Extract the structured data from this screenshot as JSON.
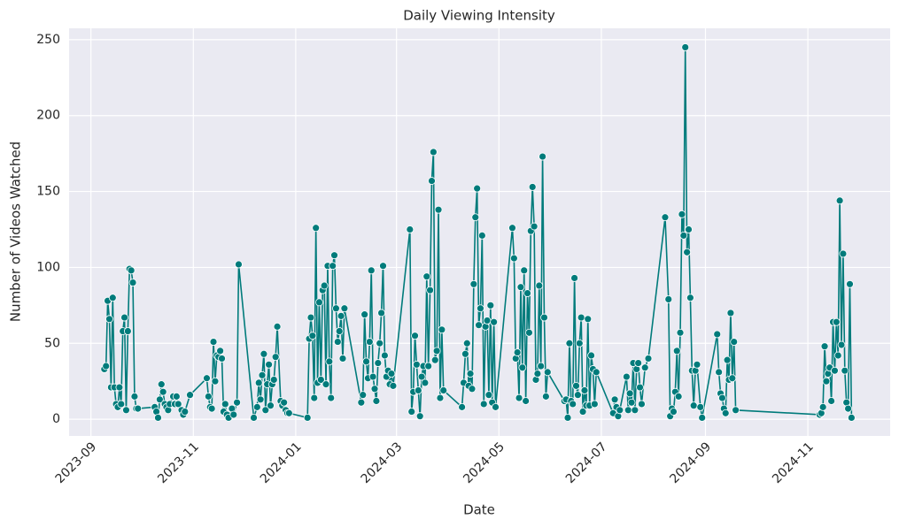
{
  "chart_data": {
    "type": "line",
    "title": "Daily Viewing Intensity",
    "x_label": "Date",
    "y_label": "Number of Videos Watched",
    "color": "#007b7b",
    "grid": true,
    "marker": "o",
    "xlim": [
      "2023-08-19",
      "2024-12-20"
    ],
    "ylim": [
      -11,
      257.5
    ],
    "xticks": [
      {
        "value": "2023-09-01",
        "label": "2023-09"
      },
      {
        "value": "2023-11-01",
        "label": "2023-11"
      },
      {
        "value": "2024-01-01",
        "label": "2024-01"
      },
      {
        "value": "2024-03-01",
        "label": "2024-03"
      },
      {
        "value": "2024-05-01",
        "label": "2024-05"
      },
      {
        "value": "2024-07-01",
        "label": "2024-07"
      },
      {
        "value": "2024-09-01",
        "label": "2024-09"
      },
      {
        "value": "2024-11-01",
        "label": "2024-11"
      }
    ],
    "yticks": [
      0,
      50,
      100,
      150,
      200,
      250
    ],
    "x": [
      "2023-09-09",
      "2023-09-10",
      "2023-09-11",
      "2023-09-12",
      "2023-09-13",
      "2023-09-14",
      "2023-09-15",
      "2023-09-16",
      "2023-09-17",
      "2023-09-18",
      "2023-09-19",
      "2023-09-20",
      "2023-09-21",
      "2023-09-22",
      "2023-09-23",
      "2023-09-24",
      "2023-09-25",
      "2023-09-26",
      "2023-09-27",
      "2023-09-28",
      "2023-09-29",
      "2023-10-09",
      "2023-10-10",
      "2023-10-11",
      "2023-10-12",
      "2023-10-13",
      "2023-10-14",
      "2023-10-15",
      "2023-10-16",
      "2023-10-17",
      "2023-10-18",
      "2023-10-20",
      "2023-10-21",
      "2023-10-22",
      "2023-10-23",
      "2023-10-25",
      "2023-10-26",
      "2023-10-27",
      "2023-10-30",
      "2023-11-09",
      "2023-11-10",
      "2023-11-11",
      "2023-11-12",
      "2023-11-13",
      "2023-11-14",
      "2023-11-15",
      "2023-11-16",
      "2023-11-17",
      "2023-11-18",
      "2023-11-19",
      "2023-11-20",
      "2023-11-21",
      "2023-11-22",
      "2023-11-24",
      "2023-11-25",
      "2023-11-27",
      "2023-11-28",
      "2023-12-07",
      "2023-12-09",
      "2023-12-10",
      "2023-12-11",
      "2023-12-12",
      "2023-12-13",
      "2023-12-14",
      "2023-12-15",
      "2023-12-16",
      "2023-12-17",
      "2023-12-18",
      "2023-12-19",
      "2023-12-20",
      "2023-12-21",
      "2023-12-23",
      "2023-12-24",
      "2023-12-25",
      "2023-12-26",
      "2023-12-27",
      "2023-12-28",
      "2024-01-08",
      "2024-01-09",
      "2024-01-10",
      "2024-01-11",
      "2024-01-12",
      "2024-01-13",
      "2024-01-14",
      "2024-01-15",
      "2024-01-16",
      "2024-01-17",
      "2024-01-18",
      "2024-01-19",
      "2024-01-20",
      "2024-01-21",
      "2024-01-22",
      "2024-01-23",
      "2024-01-24",
      "2024-01-25",
      "2024-01-26",
      "2024-01-27",
      "2024-01-28",
      "2024-01-29",
      "2024-01-30",
      "2024-02-09",
      "2024-02-10",
      "2024-02-11",
      "2024-02-12",
      "2024-02-13",
      "2024-02-14",
      "2024-02-15",
      "2024-02-16",
      "2024-02-17",
      "2024-02-18",
      "2024-02-19",
      "2024-02-20",
      "2024-02-21",
      "2024-02-22",
      "2024-02-23",
      "2024-02-24",
      "2024-02-25",
      "2024-02-26",
      "2024-02-27",
      "2024-02-28",
      "2024-03-09",
      "2024-03-10",
      "2024-03-11",
      "2024-03-12",
      "2024-03-13",
      "2024-03-14",
      "2024-03-15",
      "2024-03-16",
      "2024-03-17",
      "2024-03-18",
      "2024-03-19",
      "2024-03-20",
      "2024-03-21",
      "2024-03-22",
      "2024-03-23",
      "2024-03-24",
      "2024-03-25",
      "2024-03-26",
      "2024-03-27",
      "2024-03-28",
      "2024-03-29",
      "2024-04-09",
      "2024-04-10",
      "2024-04-11",
      "2024-04-12",
      "2024-04-13",
      "2024-04-14",
      "2024-04-15",
      "2024-04-16",
      "2024-04-17",
      "2024-04-18",
      "2024-04-19",
      "2024-04-20",
      "2024-04-21",
      "2024-04-22",
      "2024-04-23",
      "2024-04-24",
      "2024-04-25",
      "2024-04-26",
      "2024-04-27",
      "2024-04-28",
      "2024-04-29",
      "2024-05-09",
      "2024-05-10",
      "2024-05-11",
      "2024-05-12",
      "2024-05-13",
      "2024-05-14",
      "2024-05-15",
      "2024-05-16",
      "2024-05-17",
      "2024-05-18",
      "2024-05-19",
      "2024-05-20",
      "2024-05-21",
      "2024-05-22",
      "2024-05-23",
      "2024-05-24",
      "2024-05-25",
      "2024-05-26",
      "2024-05-27",
      "2024-05-28",
      "2024-05-29",
      "2024-05-30",
      "2024-06-09",
      "2024-06-10",
      "2024-06-11",
      "2024-06-12",
      "2024-06-13",
      "2024-06-14",
      "2024-06-15",
      "2024-06-16",
      "2024-06-17",
      "2024-06-18",
      "2024-06-19",
      "2024-06-20",
      "2024-06-21",
      "2024-06-22",
      "2024-06-23",
      "2024-06-24",
      "2024-06-25",
      "2024-06-26",
      "2024-06-27",
      "2024-06-28",
      "2024-07-08",
      "2024-07-09",
      "2024-07-10",
      "2024-07-11",
      "2024-07-12",
      "2024-07-16",
      "2024-07-17",
      "2024-07-18",
      "2024-07-19",
      "2024-07-20",
      "2024-07-21",
      "2024-07-22",
      "2024-07-23",
      "2024-07-24",
      "2024-07-25",
      "2024-07-27",
      "2024-07-29",
      "2024-08-08",
      "2024-08-10",
      "2024-08-11",
      "2024-08-12",
      "2024-08-13",
      "2024-08-14",
      "2024-08-15",
      "2024-08-16",
      "2024-08-17",
      "2024-08-18",
      "2024-08-19",
      "2024-08-20",
      "2024-08-21",
      "2024-08-22",
      "2024-08-23",
      "2024-08-24",
      "2024-08-25",
      "2024-08-26",
      "2024-08-27",
      "2024-08-29",
      "2024-08-30",
      "2024-09-08",
      "2024-09-09",
      "2024-09-10",
      "2024-09-11",
      "2024-09-12",
      "2024-09-13",
      "2024-09-14",
      "2024-09-15",
      "2024-09-16",
      "2024-09-17",
      "2024-09-18",
      "2024-09-19",
      "2024-11-08",
      "2024-11-09",
      "2024-11-10",
      "2024-11-11",
      "2024-11-12",
      "2024-11-13",
      "2024-11-14",
      "2024-11-15",
      "2024-11-16",
      "2024-11-17",
      "2024-11-18",
      "2024-11-19",
      "2024-11-20",
      "2024-11-21",
      "2024-11-22",
      "2024-11-23",
      "2024-11-24",
      "2024-11-25",
      "2024-11-26",
      "2024-11-27"
    ],
    "values": [
      33,
      35,
      78,
      66,
      21,
      80,
      21,
      10,
      8,
      21,
      10,
      58,
      67,
      6,
      58,
      99,
      98,
      90,
      15,
      7,
      7,
      8,
      5,
      1,
      13,
      23,
      18,
      10,
      8,
      6,
      10,
      15,
      10,
      15,
      10,
      6,
      3,
      5,
      16,
      27,
      15,
      8,
      7,
      51,
      25,
      42,
      41,
      45,
      40,
      5,
      10,
      3,
      1,
      7,
      3,
      11,
      102,
      1,
      8,
      24,
      13,
      29,
      43,
      6,
      23,
      36,
      9,
      23,
      26,
      41,
      61,
      12,
      9,
      11,
      6,
      4,
      4,
      1,
      53,
      67,
      55,
      14,
      126,
      24,
      77,
      26,
      85,
      88,
      23,
      101,
      38,
      14,
      101,
      108,
      73,
      51,
      58,
      68,
      40,
      73,
      11,
      16,
      69,
      38,
      27,
      51,
      98,
      28,
      20,
      12,
      37,
      50,
      70,
      101,
      42,
      28,
      32,
      23,
      30,
      22,
      125,
      5,
      18,
      55,
      36,
      19,
      2,
      28,
      35,
      24,
      94,
      35,
      85,
      157,
      176,
      39,
      45,
      138,
      14,
      59,
      19,
      8,
      24,
      43,
      50,
      22,
      30,
      20,
      89,
      133,
      152,
      62,
      73,
      121,
      10,
      61,
      65,
      16,
      75,
      11,
      64,
      8,
      126,
      106,
      40,
      44,
      14,
      87,
      34,
      98,
      12,
      83,
      57,
      124,
      153,
      127,
      26,
      30,
      88,
      35,
      173,
      67,
      15,
      31,
      12,
      13,
      1,
      50,
      12,
      10,
      93,
      22,
      16,
      50,
      67,
      5,
      19,
      9,
      66,
      9,
      42,
      33,
      10,
      31,
      4,
      13,
      8,
      2,
      6,
      28,
      6,
      17,
      11,
      37,
      6,
      33,
      37,
      21,
      10,
      34,
      40,
      133,
      79,
      2,
      7,
      5,
      18,
      45,
      15,
      57,
      135,
      121,
      245,
      110,
      125,
      80,
      32,
      9,
      32,
      36,
      8,
      1,
      56,
      31,
      17,
      14,
      7,
      4,
      39,
      26,
      70,
      27,
      51,
      6,
      3,
      4,
      8,
      48,
      25,
      30,
      34,
      12,
      64,
      32,
      64,
      42,
      144,
      49,
      109,
      32,
      11,
      7,
      89,
      1
    ]
  }
}
